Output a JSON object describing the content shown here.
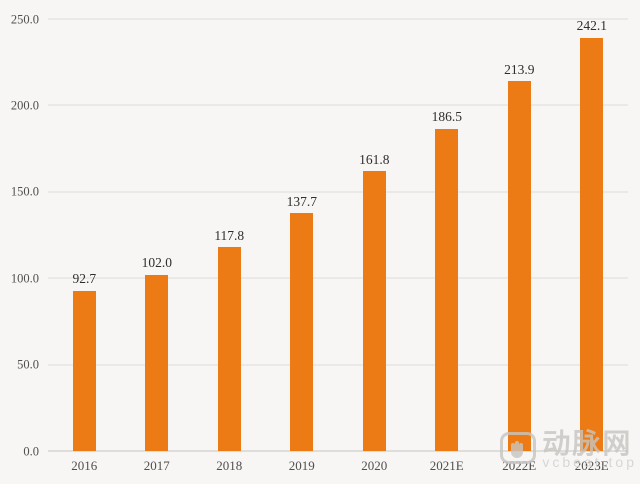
{
  "page": {
    "background": "#f7f6f4"
  },
  "chart_data": {
    "type": "bar",
    "title": "",
    "xlabel": "",
    "ylabel": "",
    "categories": [
      "2016",
      "2017",
      "2018",
      "2019",
      "2020",
      "2021E",
      "2022E",
      "2023E"
    ],
    "values": [
      92.7,
      102.0,
      117.8,
      137.7,
      161.8,
      186.5,
      213.9,
      242.1
    ],
    "value_labels": [
      "92.7",
      "102.0",
      "117.8",
      "137.7",
      "161.8",
      "186.5",
      "213.9",
      "242.1"
    ],
    "ylim": [
      0,
      250
    ],
    "ytick_interval": 50,
    "yticks": [
      "0.0",
      "50.0",
      "100.0",
      "150.0",
      "200.0",
      "250.0"
    ],
    "grid": true,
    "legend": null,
    "bar_color": "#ec7a15",
    "gridline_color": "#dddcd9",
    "axis_line_color": "#c5c4c1",
    "tick_label_color": "#4f4f4f",
    "value_label_color": "#2e2e2e"
  },
  "watermark": {
    "logo_icon": "vcbeat-fist-logo-icon",
    "cn_text": "动脉网",
    "en_text": "vcbeat.top",
    "color": "#c7c5c2"
  }
}
